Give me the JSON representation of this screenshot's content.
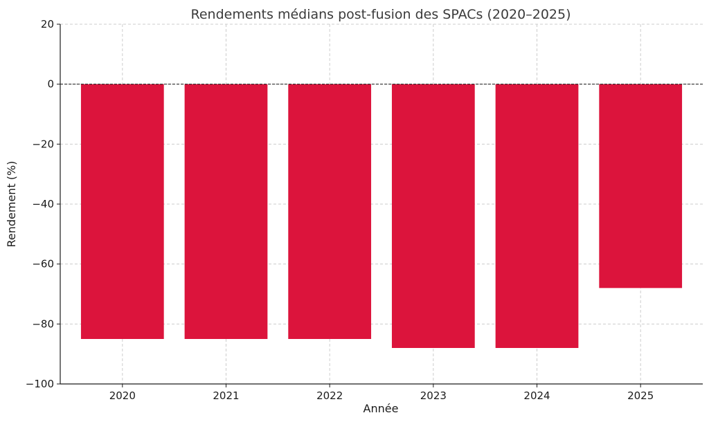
{
  "chart_data": {
    "type": "bar",
    "title": "Rendements médians post-fusion des SPACs (2020–2025)",
    "xlabel": "Année",
    "ylabel": "Rendement (%)",
    "categories": [
      "2020",
      "2021",
      "2022",
      "2023",
      "2024",
      "2025"
    ],
    "values": [
      -85,
      -85,
      -85,
      -88,
      -88,
      -68
    ],
    "ylim": [
      -100,
      20
    ],
    "yticks": [
      20,
      0,
      -20,
      -40,
      -60,
      -80,
      -100
    ],
    "ytick_labels": [
      "20",
      "0",
      "−20",
      "−40",
      "−60",
      "−80",
      "−100"
    ],
    "grid": true,
    "zero_line": true,
    "bar_color": "#dc143c"
  }
}
